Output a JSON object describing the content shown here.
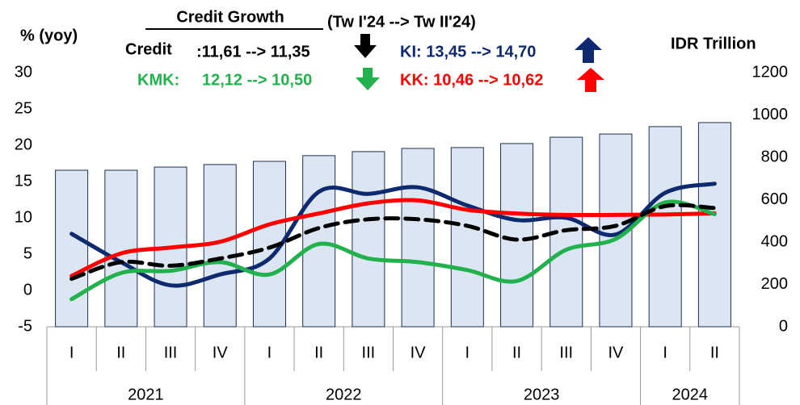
{
  "chart_data": {
    "type": "bar-line",
    "title": "Credit Growth",
    "subtitle": "(Tw I'24 --> Tw II'24)",
    "annotations": {
      "credit_label": "Credit",
      "credit_change": ":11,61 --> 11,35",
      "ki_change": "KI: 13,45 --> 14,70",
      "kmk_label": "KMK:",
      "kmk_change": "12,12 --> 10,50",
      "kk_change": "KK: 10,46 --> 10,62"
    },
    "ylabel": "% (yoy)",
    "y2label": "IDR Trillion",
    "categories": [
      "I",
      "II",
      "III",
      "IV",
      "I",
      "II",
      "III",
      "IV",
      "I",
      "II",
      "III",
      "IV",
      "I",
      "II"
    ],
    "years": [
      "2021",
      "2022",
      "2023",
      "2024"
    ],
    "year_spans": [
      4,
      4,
      4,
      2
    ],
    "ylim": [
      -5,
      30
    ],
    "yticks": [
      -5,
      0,
      5,
      10,
      15,
      20,
      25,
      30
    ],
    "y2lim": [
      0,
      1200
    ],
    "y2ticks": [
      0,
      200,
      400,
      600,
      800,
      1000,
      1200
    ],
    "series": [
      {
        "type": "bar",
        "axis": "y2",
        "color": "#dce6f2",
        "values": [
          739,
          739,
          754,
          766,
          781,
          808,
          827,
          842,
          846,
          865,
          895,
          910,
          945,
          964
        ]
      },
      {
        "type": "line",
        "name": "Credit",
        "color": "#000000",
        "dashed": true,
        "values": [
          1.6,
          3.9,
          3.4,
          4.4,
          5.9,
          8.6,
          9.8,
          9.8,
          8.9,
          7.0,
          8.3,
          8.9,
          11.61,
          11.35
        ]
      },
      {
        "type": "line",
        "color": "#0d2a6e",
        "values": [
          7.8,
          3.9,
          0.7,
          2.2,
          4.4,
          13.6,
          13.3,
          14.2,
          11.7,
          9.7,
          10.0,
          7.7,
          13.45,
          14.7
        ]
      },
      {
        "type": "line",
        "color": "#ff0000",
        "values": [
          2.0,
          5.1,
          5.9,
          6.7,
          9.1,
          10.6,
          12.0,
          12.4,
          11.1,
          10.6,
          10.4,
          10.4,
          10.46,
          10.62
        ]
      },
      {
        "type": "line",
        "color": "#22b14c",
        "values": [
          -1.2,
          2.4,
          2.7,
          3.9,
          2.2,
          6.4,
          4.4,
          3.9,
          2.8,
          1.3,
          5.6,
          7.1,
          12.12,
          10.5
        ]
      }
    ]
  }
}
